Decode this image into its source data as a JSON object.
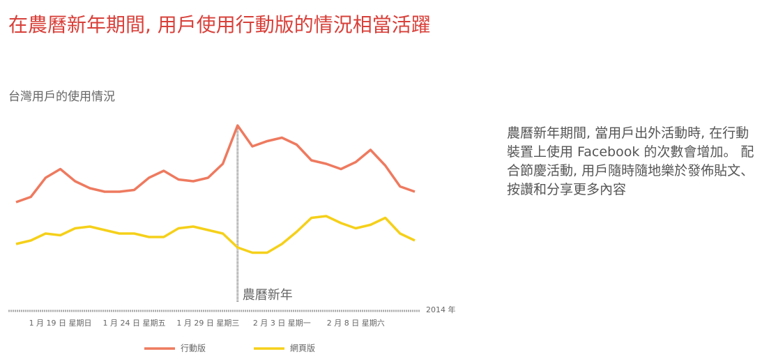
{
  "chart_data": {
    "type": "line",
    "title": "在農曆新年期間, 用戶使用行動版的情況相當活躍",
    "subtitle": "台灣用戶的使用情況",
    "note": "農曆新年期間, 當用戶出外活動時, 在行動裝置上使用 Facebook 的次數會增加。 配合節慶活動, 用戶隨時隨地樂於發佈貼文、按讚和分享更多內容",
    "x_label": "2014 年",
    "categories": [
      null,
      null,
      null,
      "1 月 19 日 星期日",
      null,
      null,
      null,
      null,
      "1 月 24 日 星期五",
      null,
      null,
      null,
      null,
      "1 月 29 日 星期三",
      null,
      null,
      null,
      null,
      "2 月 3 日 星期一",
      null,
      null,
      null,
      null,
      "2 月 8 日 星期六",
      null,
      null,
      null,
      null
    ],
    "annotation": {
      "label": "農曆新年",
      "category": 15
    },
    "ylim": [
      0,
      100
    ],
    "series": [
      {
        "name": "行動版",
        "color": "#ee7a5f",
        "values": [
          52,
          55,
          66,
          71,
          64,
          60,
          58,
          58,
          59,
          66,
          70,
          65,
          64,
          66,
          74,
          96,
          84,
          87,
          89,
          85,
          76,
          74,
          71,
          75,
          82,
          73,
          61,
          58
        ]
      },
      {
        "name": "網頁版",
        "color": "#f5d01a",
        "values": [
          28,
          30,
          34,
          33,
          37,
          38,
          36,
          34,
          34,
          32,
          32,
          37,
          38,
          36,
          34,
          26,
          23,
          23,
          28,
          35,
          43,
          44,
          40,
          37,
          39,
          43,
          34,
          30
        ]
      }
    ]
  }
}
